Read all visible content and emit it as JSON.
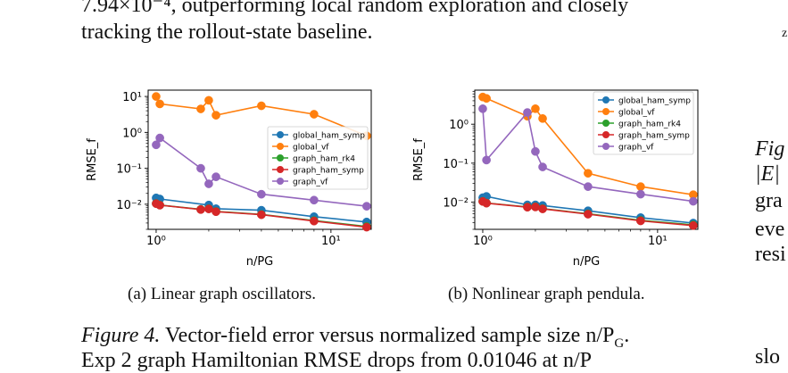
{
  "body_text": {
    "line1": "7.94×10⁻⁴, outperforming local random exploration and closely",
    "line2": "tracking the rollout-state baseline."
  },
  "captions": {
    "a": "(a) Linear graph oscillators.",
    "b": "(b) Nonlinear graph pendula.",
    "figure_label": "Figure 4.",
    "figure_text": " Vector-field error versus normalized sample size n/P",
    "figure_sub": "G",
    "figure_end": ".",
    "figure_line2": "Exp 2 graph Hamiltonian RMSE drops from 0.01046 at n/P"
  },
  "right_column": {
    "top1": "∃",
    "top2": "z",
    "l1": "Fig",
    "l2": "|E|",
    "l3": "gra",
    "l4": "eve",
    "l5": "resi",
    "l6": "slo"
  },
  "colors": {
    "global_ham_symp": "#1f77b4",
    "global_vf": "#ff7f0e",
    "graph_ham_rk4": "#2ca02c",
    "graph_ham_symp": "#d62728",
    "graph_vf": "#9467bd"
  },
  "chart_data": [
    {
      "type": "line",
      "log_x": true,
      "log_y": true,
      "xlabel": "n/PG",
      "ylabel": "RMSE_f",
      "xlim": [
        0.9,
        17
      ],
      "ylim": [
        0.002,
        15
      ],
      "x_ticks": [
        {
          "v": 1,
          "label": "10⁰"
        },
        {
          "v": 10,
          "label": "10¹"
        }
      ],
      "y_ticks": [
        {
          "v": 10,
          "label": "10¹"
        },
        {
          "v": 1,
          "label": "10⁰"
        },
        {
          "v": 0.1,
          "label": "10⁻¹"
        },
        {
          "v": 0.01,
          "label": "10⁻²"
        }
      ],
      "legend_position": "center-right",
      "series": [
        {
          "name": "global_ham_symp",
          "x": [
            1,
            1.05,
            2,
            2.2,
            4,
            8,
            16
          ],
          "y": [
            0.015,
            0.014,
            0.0095,
            0.0075,
            0.0068,
            0.0045,
            0.0032
          ]
        },
        {
          "name": "global_vf",
          "x": [
            1,
            1.05,
            1.8,
            2,
            2.2,
            4,
            8,
            16
          ],
          "y": [
            10,
            6.2,
            4.5,
            7.8,
            3.0,
            5.5,
            3.2,
            0.8
          ]
        },
        {
          "name": "graph_ham_rk4",
          "x": [
            1,
            1.05,
            1.8,
            2,
            2.2,
            4,
            8,
            16
          ],
          "y": [
            0.0105,
            0.0095,
            0.0072,
            0.0075,
            0.0063,
            0.0052,
            0.0035,
            0.0024
          ]
        },
        {
          "name": "graph_ham_symp",
          "x": [
            1,
            1.05,
            1.8,
            2,
            2.2,
            4,
            8,
            16
          ],
          "y": [
            0.0104,
            0.0094,
            0.0071,
            0.0074,
            0.0062,
            0.0051,
            0.0034,
            0.0023
          ]
        },
        {
          "name": "graph_vf",
          "x": [
            1,
            1.05,
            1.8,
            2,
            2.2,
            4,
            8,
            16
          ],
          "y": [
            0.45,
            0.7,
            0.1,
            0.037,
            0.058,
            0.019,
            0.013,
            0.0088
          ]
        }
      ]
    },
    {
      "type": "line",
      "log_x": true,
      "log_y": true,
      "xlabel": "n/PG",
      "ylabel": "RMSE_f",
      "xlim": [
        0.9,
        17
      ],
      "ylim": [
        0.002,
        7.5
      ],
      "x_ticks": [
        {
          "v": 1,
          "label": "10⁰"
        },
        {
          "v": 10,
          "label": "10¹"
        }
      ],
      "y_ticks": [
        {
          "v": 1,
          "label": "10⁰"
        },
        {
          "v": 0.1,
          "label": "10⁻¹"
        },
        {
          "v": 0.01,
          "label": "10⁻²"
        }
      ],
      "legend_position": "upper-right",
      "series": [
        {
          "name": "global_ham_symp",
          "x": [
            1,
            1.05,
            1.8,
            2,
            2.2,
            4,
            8,
            16
          ],
          "y": [
            0.013,
            0.014,
            0.0085,
            0.0085,
            0.0082,
            0.006,
            0.004,
            0.0029
          ]
        },
        {
          "name": "global_vf",
          "x": [
            1,
            1.05,
            1.8,
            2,
            2.2,
            4,
            8,
            16
          ],
          "y": [
            5.0,
            4.6,
            1.6,
            2.5,
            1.4,
            0.055,
            0.025,
            0.0155
          ]
        },
        {
          "name": "graph_ham_rk4",
          "x": [
            1,
            1.05,
            1.8,
            2,
            2.2,
            4,
            8,
            16
          ],
          "y": [
            0.0105,
            0.0095,
            0.0075,
            0.0076,
            0.0068,
            0.005,
            0.0034,
            0.0026
          ]
        },
        {
          "name": "graph_ham_symp",
          "x": [
            1,
            1.05,
            1.8,
            2,
            2.2,
            4,
            8,
            16
          ],
          "y": [
            0.0104,
            0.0094,
            0.0074,
            0.0075,
            0.0067,
            0.0049,
            0.0033,
            0.0025
          ]
        },
        {
          "name": "graph_vf",
          "x": [
            1,
            1.05,
            1.8,
            2,
            2.2,
            4,
            8,
            16
          ],
          "y": [
            2.5,
            0.12,
            2.0,
            0.2,
            0.08,
            0.025,
            0.016,
            0.0105
          ]
        }
      ]
    }
  ]
}
